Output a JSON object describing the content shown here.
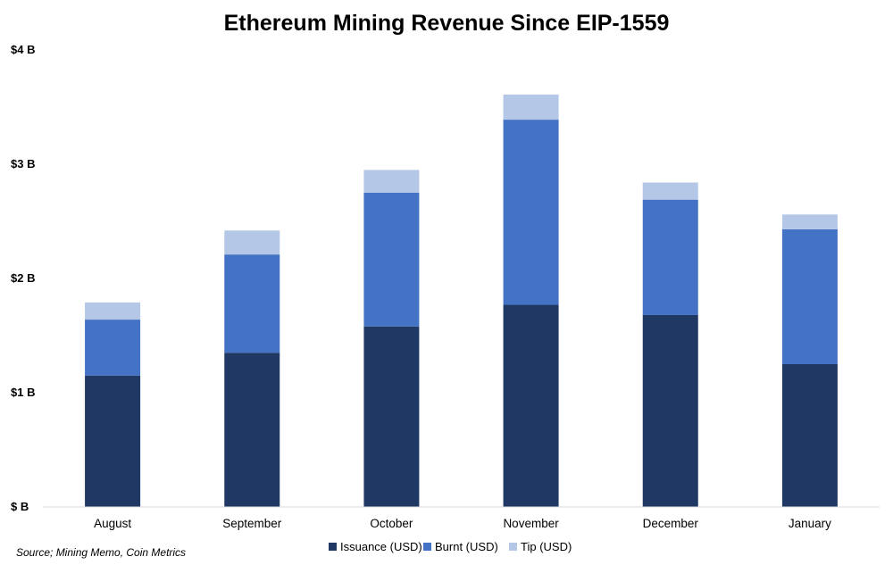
{
  "chart_data": {
    "type": "bar",
    "stacked": true,
    "title": "Ethereum Mining Revenue Since EIP-1559",
    "xlabel": "",
    "ylabel": "",
    "categories": [
      "August",
      "September",
      "October",
      "November",
      "December",
      "January"
    ],
    "series": [
      {
        "name": "Issuance (USD)",
        "color": "#203864",
        "values": [
          1.15,
          1.35,
          1.58,
          1.77,
          1.68,
          1.25
        ]
      },
      {
        "name": "Burnt (USD)",
        "color": "#4472c4",
        "values": [
          0.49,
          0.86,
          1.17,
          1.62,
          1.01,
          1.18
        ]
      },
      {
        "name": "Tip (USD)",
        "color": "#b4c7e7",
        "values": [
          0.15,
          0.21,
          0.2,
          0.22,
          0.15,
          0.13
        ]
      }
    ],
    "ylim": [
      0,
      4
    ],
    "yticks": [
      0,
      1,
      2,
      3,
      4
    ],
    "ytick_labels": [
      "$ B",
      "$1 B",
      "$2 B",
      "$3 B",
      "$4 B"
    ],
    "grid": false,
    "legend_position": "bottom",
    "source": "Source; Mining Memo, Coin Metrics"
  }
}
